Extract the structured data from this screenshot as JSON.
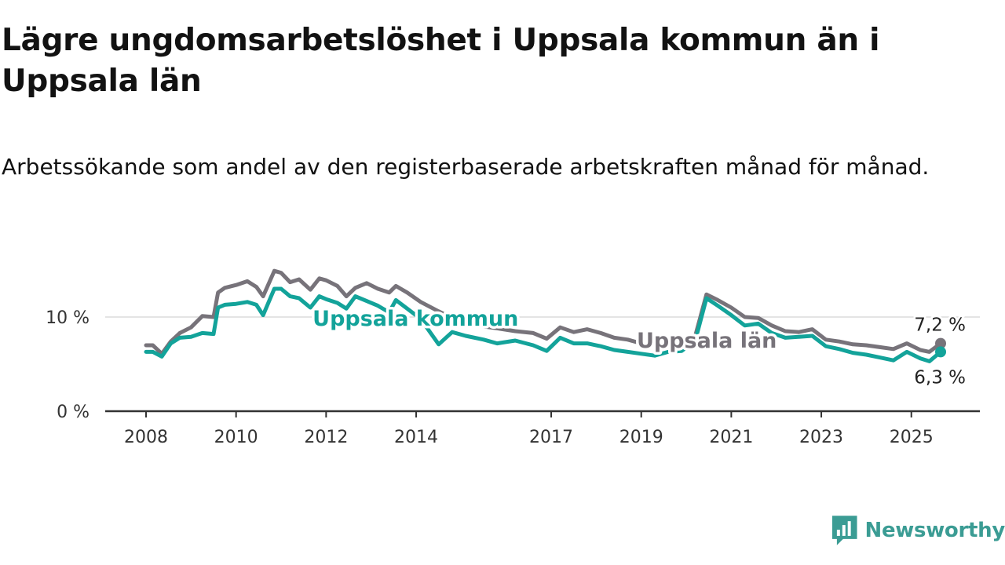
{
  "title": "Lägre ungdomsarbetslöshet i Uppsala kommun än i Uppsala län",
  "subtitle": "Arbetssökande som andel av den registerbaserade arbetskraften månad för månad.",
  "brand": {
    "name": "Newsworthy",
    "icon": "chart-bubble-icon",
    "color": "#3b9c94"
  },
  "chart_data": {
    "type": "line",
    "title": "",
    "xlabel": "",
    "ylabel": "",
    "x_range": [
      2008.0,
      2025.65
    ],
    "ylim": [
      0,
      17
    ],
    "y_ticks": [
      {
        "value": 0,
        "label": "0 %"
      },
      {
        "value": 10,
        "label": "10 %"
      }
    ],
    "x_ticks": [
      {
        "value": 2008,
        "label": "2008"
      },
      {
        "value": 2010,
        "label": "2010"
      },
      {
        "value": 2012,
        "label": "2012"
      },
      {
        "value": 2014,
        "label": "2014"
      },
      {
        "value": 2017,
        "label": "2017"
      },
      {
        "value": 2019,
        "label": "2019"
      },
      {
        "value": 2021,
        "label": "2021"
      },
      {
        "value": 2023,
        "label": "2023"
      },
      {
        "value": 2025,
        "label": "2025"
      }
    ],
    "grid": "horizontal",
    "legend": "inline labels",
    "series": [
      {
        "name": "Uppsala län",
        "color": "#77737a",
        "inline_label": "Uppsala län",
        "end_label": "7,2 %",
        "x": [
          2008.0,
          2008.15,
          2008.35,
          2008.55,
          2008.75,
          2009.0,
          2009.25,
          2009.5,
          2009.6,
          2009.75,
          2010.0,
          2010.25,
          2010.45,
          2010.6,
          2010.85,
          2011.0,
          2011.2,
          2011.4,
          2011.65,
          2011.85,
          2012.0,
          2012.25,
          2012.45,
          2012.65,
          2012.9,
          2013.15,
          2013.4,
          2013.55,
          2013.8,
          2014.1,
          2014.5,
          2014.8,
          2015.1,
          2015.5,
          2015.8,
          2016.2,
          2016.6,
          2016.9,
          2017.2,
          2017.5,
          2017.8,
          2018.1,
          2018.4,
          2018.7,
          2019.0,
          2019.3,
          2019.6,
          2019.9,
          2020.2,
          2020.45,
          2020.7,
          2021.0,
          2021.3,
          2021.6,
          2021.9,
          2022.2,
          2022.5,
          2022.8,
          2023.1,
          2023.4,
          2023.7,
          2024.0,
          2024.3,
          2024.6,
          2024.9,
          2025.2,
          2025.4,
          2025.65
        ],
        "values": [
          7.0,
          7.0,
          6.1,
          7.4,
          8.3,
          8.9,
          10.1,
          10.0,
          12.6,
          13.1,
          13.4,
          13.8,
          13.2,
          12.2,
          14.9,
          14.7,
          13.7,
          14.0,
          12.9,
          14.1,
          13.9,
          13.3,
          12.2,
          13.1,
          13.6,
          13.0,
          12.6,
          13.3,
          12.6,
          11.6,
          10.6,
          9.9,
          9.6,
          9.0,
          8.8,
          8.5,
          8.3,
          7.7,
          8.9,
          8.4,
          8.7,
          8.3,
          7.8,
          7.6,
          7.2,
          7.0,
          7.3,
          7.5,
          8.0,
          12.4,
          11.8,
          11.0,
          10.0,
          9.9,
          9.1,
          8.5,
          8.4,
          8.7,
          7.6,
          7.4,
          7.1,
          7.0,
          6.8,
          6.6,
          7.2,
          6.5,
          6.3,
          7.2
        ]
      },
      {
        "name": "Uppsala kommun",
        "color": "#13a39a",
        "inline_label": "Uppsala kommun",
        "end_label": "6,3 %",
        "x": [
          2008.0,
          2008.15,
          2008.35,
          2008.55,
          2008.75,
          2009.0,
          2009.25,
          2009.5,
          2009.6,
          2009.75,
          2010.0,
          2010.25,
          2010.45,
          2010.6,
          2010.85,
          2011.0,
          2011.2,
          2011.4,
          2011.65,
          2011.85,
          2012.0,
          2012.25,
          2012.45,
          2012.65,
          2012.9,
          2013.15,
          2013.4,
          2013.55,
          2013.8,
          2014.1,
          2014.5,
          2014.8,
          2015.1,
          2015.5,
          2015.8,
          2016.2,
          2016.6,
          2016.9,
          2017.2,
          2017.5,
          2017.8,
          2018.1,
          2018.4,
          2018.7,
          2019.0,
          2019.3,
          2019.6,
          2019.9,
          2020.2,
          2020.45,
          2020.7,
          2021.0,
          2021.3,
          2021.6,
          2021.9,
          2022.2,
          2022.5,
          2022.8,
          2023.1,
          2023.4,
          2023.7,
          2024.0,
          2024.3,
          2024.6,
          2024.9,
          2025.2,
          2025.4,
          2025.65
        ],
        "values": [
          6.3,
          6.3,
          5.8,
          7.2,
          7.8,
          7.9,
          8.3,
          8.2,
          11.0,
          11.3,
          11.4,
          11.6,
          11.3,
          10.2,
          13.0,
          13.0,
          12.2,
          12.0,
          11.0,
          12.2,
          11.9,
          11.5,
          10.9,
          12.2,
          11.7,
          11.2,
          10.5,
          11.8,
          10.9,
          9.8,
          7.1,
          8.4,
          8.0,
          7.6,
          7.2,
          7.5,
          7.0,
          6.4,
          7.8,
          7.2,
          7.2,
          6.9,
          6.5,
          6.3,
          6.1,
          5.9,
          6.3,
          6.4,
          7.5,
          12.0,
          11.2,
          10.2,
          9.1,
          9.3,
          8.3,
          7.8,
          7.9,
          8.0,
          6.9,
          6.6,
          6.2,
          6.0,
          5.7,
          5.4,
          6.3,
          5.6,
          5.3,
          6.3
        ]
      }
    ]
  }
}
